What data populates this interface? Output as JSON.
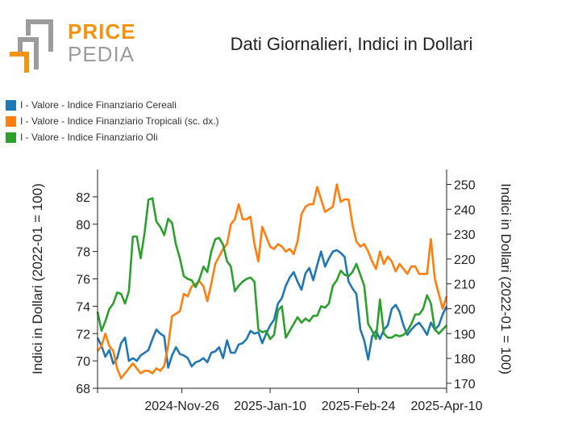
{
  "logo": {
    "word1": "PRICE",
    "word2": "PEDIA",
    "colors": {
      "orange": "#f29312",
      "gray": "#9c9c9c"
    }
  },
  "colors": {
    "cereali": "#1f77b4",
    "tropicali": "#ff7f0e",
    "oli": "#2ca02c"
  },
  "chart_data": {
    "type": "line",
    "title": "Dati Giornalieri, Indici in Dollari",
    "ylabel_left": "Indici in Dollari (2022-01 = 100)",
    "ylabel_right": "Indici in Dollari (2022-01 = 100)",
    "ylim_left": [
      68,
      84
    ],
    "ylim_right": [
      168,
      256
    ],
    "yticks_left": [
      68,
      70,
      72,
      74,
      76,
      78,
      80,
      82
    ],
    "yticks_right": [
      170,
      180,
      190,
      200,
      210,
      220,
      230,
      240,
      250
    ],
    "xlim": [
      "2024-10-14",
      "2025-04-10"
    ],
    "xticks": [
      "2024-Nov-26",
      "2025-Jan-10",
      "2025-Feb-24",
      "2025-Apr-10"
    ],
    "grid": false,
    "legend_position": "top-left",
    "series": [
      {
        "name": "I - Valore - Indice Finanziario Cereali",
        "axis": "left",
        "color": "#1f77b4",
        "values": [
          [
            "2024-10-14",
            71.7
          ],
          [
            "2024-10-16",
            71.1
          ],
          [
            "2024-10-18",
            70.3
          ],
          [
            "2024-10-20",
            70.8
          ],
          [
            "2024-10-22",
            69.8
          ],
          [
            "2024-10-24",
            70.2
          ],
          [
            "2024-10-26",
            71.3
          ],
          [
            "2024-10-28",
            71.7
          ],
          [
            "2024-10-30",
            70.0
          ],
          [
            "2024-11-01",
            70.2
          ],
          [
            "2024-11-03",
            70.0
          ],
          [
            "2024-11-05",
            70.4
          ],
          [
            "2024-11-07",
            70.6
          ],
          [
            "2024-11-09",
            70.8
          ],
          [
            "2024-11-11",
            71.6
          ],
          [
            "2024-11-13",
            72.3
          ],
          [
            "2024-11-15",
            72.0
          ],
          [
            "2024-11-17",
            71.8
          ],
          [
            "2024-11-19",
            69.5
          ],
          [
            "2024-11-21",
            70.4
          ],
          [
            "2024-11-23",
            71.0
          ],
          [
            "2024-11-25",
            70.5
          ],
          [
            "2024-11-27",
            70.4
          ],
          [
            "2024-11-29",
            70.2
          ],
          [
            "2024-12-01",
            69.6
          ],
          [
            "2024-12-03",
            69.9
          ],
          [
            "2024-12-05",
            70.0
          ],
          [
            "2024-12-07",
            70.2
          ],
          [
            "2024-12-09",
            69.9
          ],
          [
            "2024-12-11",
            70.6
          ],
          [
            "2024-12-13",
            70.7
          ],
          [
            "2024-12-15",
            71.0
          ],
          [
            "2024-12-17",
            70.2
          ],
          [
            "2024-12-19",
            71.5
          ],
          [
            "2024-12-21",
            70.6
          ],
          [
            "2024-12-23",
            70.6
          ],
          [
            "2024-12-25",
            71.2
          ],
          [
            "2024-12-27",
            71.3
          ],
          [
            "2024-12-29",
            71.6
          ],
          [
            "2024-12-31",
            72.2
          ],
          [
            "2025-01-02",
            72.0
          ],
          [
            "2025-01-04",
            72.1
          ],
          [
            "2025-01-06",
            71.3
          ],
          [
            "2025-01-08",
            72.0
          ],
          [
            "2025-01-10",
            72.6
          ],
          [
            "2025-01-12",
            73.0
          ],
          [
            "2025-01-14",
            74.2
          ],
          [
            "2025-01-16",
            74.6
          ],
          [
            "2025-01-18",
            75.5
          ],
          [
            "2025-01-20",
            76.1
          ],
          [
            "2025-01-22",
            76.5
          ],
          [
            "2025-01-24",
            75.8
          ],
          [
            "2025-01-26",
            75.2
          ],
          [
            "2025-01-28",
            76.4
          ],
          [
            "2025-01-30",
            76.8
          ],
          [
            "2025-02-01",
            75.9
          ],
          [
            "2025-02-03",
            77.0
          ],
          [
            "2025-02-05",
            78.0
          ],
          [
            "2025-02-07",
            76.9
          ],
          [
            "2025-02-09",
            77.5
          ],
          [
            "2025-02-11",
            78.0
          ],
          [
            "2025-02-13",
            78.1
          ],
          [
            "2025-02-15",
            77.9
          ],
          [
            "2025-02-17",
            77.6
          ],
          [
            "2025-02-19",
            75.8
          ],
          [
            "2025-02-21",
            75.3
          ],
          [
            "2025-02-23",
            74.9
          ],
          [
            "2025-02-25",
            72.3
          ],
          [
            "2025-02-27",
            71.5
          ],
          [
            "2025-03-01",
            70.1
          ],
          [
            "2025-03-03",
            71.8
          ],
          [
            "2025-03-05",
            72.2
          ],
          [
            "2025-03-07",
            71.6
          ],
          [
            "2025-03-09",
            72.3
          ],
          [
            "2025-03-11",
            72.6
          ],
          [
            "2025-03-13",
            73.8
          ],
          [
            "2025-03-15",
            74.1
          ],
          [
            "2025-03-17",
            73.6
          ],
          [
            "2025-03-19",
            72.6
          ],
          [
            "2025-03-21",
            71.9
          ],
          [
            "2025-03-23",
            72.3
          ],
          [
            "2025-03-25",
            72.6
          ],
          [
            "2025-03-27",
            72.8
          ],
          [
            "2025-03-29",
            72.4
          ],
          [
            "2025-03-31",
            71.9
          ],
          [
            "2025-04-02",
            72.8
          ],
          [
            "2025-04-04",
            72.3
          ],
          [
            "2025-04-06",
            72.6
          ],
          [
            "2025-04-08",
            73.4
          ],
          [
            "2025-04-10",
            74.0
          ]
        ]
      },
      {
        "name": "I - Valore - Indice Finanziario Tropicali (sc. dx.)",
        "axis": "right",
        "color": "#ff7f0e",
        "values": [
          [
            "2024-10-14",
            183
          ],
          [
            "2024-10-16",
            185
          ],
          [
            "2024-10-18",
            190
          ],
          [
            "2024-10-20",
            185
          ],
          [
            "2024-10-22",
            183
          ],
          [
            "2024-10-24",
            176
          ],
          [
            "2024-10-26",
            172
          ],
          [
            "2024-10-28",
            174
          ],
          [
            "2024-10-30",
            176
          ],
          [
            "2024-11-01",
            178
          ],
          [
            "2024-11-03",
            176
          ],
          [
            "2024-11-05",
            174
          ],
          [
            "2024-11-07",
            175
          ],
          [
            "2024-11-09",
            175
          ],
          [
            "2024-11-11",
            174
          ],
          [
            "2024-11-13",
            176
          ],
          [
            "2024-11-15",
            175
          ],
          [
            "2024-11-17",
            177
          ],
          [
            "2024-11-19",
            185
          ],
          [
            "2024-11-21",
            197
          ],
          [
            "2024-11-23",
            198
          ],
          [
            "2024-11-25",
            199
          ],
          [
            "2024-11-27",
            206
          ],
          [
            "2024-11-29",
            205
          ],
          [
            "2024-12-01",
            209
          ],
          [
            "2024-12-03",
            210
          ],
          [
            "2024-12-05",
            211
          ],
          [
            "2024-12-07",
            209
          ],
          [
            "2024-12-09",
            203
          ],
          [
            "2024-12-11",
            210
          ],
          [
            "2024-12-13",
            218
          ],
          [
            "2024-12-15",
            221
          ],
          [
            "2024-12-17",
            224
          ],
          [
            "2024-12-19",
            226
          ],
          [
            "2024-12-21",
            234
          ],
          [
            "2024-12-23",
            236
          ],
          [
            "2024-12-25",
            242
          ],
          [
            "2024-12-27",
            236
          ],
          [
            "2024-12-29",
            236
          ],
          [
            "2024-12-31",
            237
          ],
          [
            "2025-01-02",
            226
          ],
          [
            "2025-01-04",
            219
          ],
          [
            "2025-01-06",
            233
          ],
          [
            "2025-01-08",
            229
          ],
          [
            "2025-01-10",
            225
          ],
          [
            "2025-01-12",
            224
          ],
          [
            "2025-01-14",
            226
          ],
          [
            "2025-01-16",
            225
          ],
          [
            "2025-01-18",
            223
          ],
          [
            "2025-01-20",
            224
          ],
          [
            "2025-01-22",
            222
          ],
          [
            "2025-01-24",
            227
          ],
          [
            "2025-01-26",
            238
          ],
          [
            "2025-01-28",
            241
          ],
          [
            "2025-01-30",
            242
          ],
          [
            "2025-02-01",
            242
          ],
          [
            "2025-02-03",
            249
          ],
          [
            "2025-02-05",
            244
          ],
          [
            "2025-02-07",
            239
          ],
          [
            "2025-02-09",
            240
          ],
          [
            "2025-02-11",
            241
          ],
          [
            "2025-02-13",
            250
          ],
          [
            "2025-02-15",
            243
          ],
          [
            "2025-02-17",
            244
          ],
          [
            "2025-02-19",
            244
          ],
          [
            "2025-02-21",
            234
          ],
          [
            "2025-02-23",
            227
          ],
          [
            "2025-02-25",
            225
          ],
          [
            "2025-02-27",
            226
          ],
          [
            "2025-03-01",
            223
          ],
          [
            "2025-03-03",
            219
          ],
          [
            "2025-03-05",
            216
          ],
          [
            "2025-03-07",
            223
          ],
          [
            "2025-03-09",
            218
          ],
          [
            "2025-03-11",
            221
          ],
          [
            "2025-03-13",
            219
          ],
          [
            "2025-03-15",
            215
          ],
          [
            "2025-03-17",
            218
          ],
          [
            "2025-03-19",
            216
          ],
          [
            "2025-03-21",
            214
          ],
          [
            "2025-03-23",
            217
          ],
          [
            "2025-03-25",
            217
          ],
          [
            "2025-03-27",
            214
          ],
          [
            "2025-03-29",
            214
          ],
          [
            "2025-03-31",
            214
          ],
          [
            "2025-04-02",
            228
          ],
          [
            "2025-04-04",
            212
          ],
          [
            "2025-04-06",
            206
          ],
          [
            "2025-04-08",
            200
          ],
          [
            "2025-04-10",
            205
          ]
        ]
      },
      {
        "name": "I - Valore - Indice Finanziario Oli",
        "axis": "left",
        "color": "#2ca02c",
        "values": [
          [
            "2024-10-14",
            73.6
          ],
          [
            "2024-10-16",
            72.2
          ],
          [
            "2024-10-18",
            72.9
          ],
          [
            "2024-10-20",
            73.8
          ],
          [
            "2024-10-22",
            74.2
          ],
          [
            "2024-10-24",
            75.0
          ],
          [
            "2024-10-26",
            74.9
          ],
          [
            "2024-10-28",
            74.2
          ],
          [
            "2024-10-30",
            75.1
          ],
          [
            "2024-11-01",
            79.1
          ],
          [
            "2024-11-03",
            79.1
          ],
          [
            "2024-11-05",
            77.5
          ],
          [
            "2024-11-07",
            79.4
          ],
          [
            "2024-11-09",
            81.8
          ],
          [
            "2024-11-11",
            81.9
          ],
          [
            "2024-11-13",
            80.2
          ],
          [
            "2024-11-15",
            79.8
          ],
          [
            "2024-11-17",
            79.2
          ],
          [
            "2024-11-19",
            80.4
          ],
          [
            "2024-11-21",
            80.1
          ],
          [
            "2024-11-23",
            78.5
          ],
          [
            "2024-11-25",
            77.5
          ],
          [
            "2024-11-27",
            76.2
          ],
          [
            "2024-11-29",
            76.0
          ],
          [
            "2024-12-01",
            75.9
          ],
          [
            "2024-12-03",
            75.4
          ],
          [
            "2024-12-05",
            76.0
          ],
          [
            "2024-12-07",
            76.9
          ],
          [
            "2024-12-09",
            76.5
          ],
          [
            "2024-12-11",
            78.0
          ],
          [
            "2024-12-13",
            78.9
          ],
          [
            "2024-12-15",
            79.0
          ],
          [
            "2024-12-17",
            78.5
          ],
          [
            "2024-12-19",
            77.3
          ],
          [
            "2024-12-21",
            76.9
          ],
          [
            "2024-12-23",
            75.1
          ],
          [
            "2024-12-25",
            75.5
          ],
          [
            "2024-12-27",
            75.8
          ],
          [
            "2024-12-29",
            76.0
          ],
          [
            "2024-12-31",
            76.1
          ],
          [
            "2025-01-02",
            75.8
          ],
          [
            "2025-01-04",
            72.3
          ],
          [
            "2025-01-06",
            72.1
          ],
          [
            "2025-01-08",
            72.2
          ],
          [
            "2025-01-10",
            71.6
          ],
          [
            "2025-01-12",
            71.9
          ],
          [
            "2025-01-14",
            73.7
          ],
          [
            "2025-01-16",
            74.0
          ],
          [
            "2025-01-18",
            71.7
          ],
          [
            "2025-01-20",
            72.2
          ],
          [
            "2025-01-22",
            72.7
          ],
          [
            "2025-01-24",
            73.2
          ],
          [
            "2025-01-26",
            72.8
          ],
          [
            "2025-01-28",
            73.1
          ],
          [
            "2025-01-30",
            72.9
          ],
          [
            "2025-02-01",
            73.3
          ],
          [
            "2025-02-03",
            73.3
          ],
          [
            "2025-02-05",
            74.0
          ],
          [
            "2025-02-07",
            73.9
          ],
          [
            "2025-02-09",
            74.2
          ],
          [
            "2025-02-11",
            75.5
          ],
          [
            "2025-02-13",
            75.9
          ],
          [
            "2025-02-15",
            76.6
          ],
          [
            "2025-02-17",
            76.3
          ],
          [
            "2025-02-19",
            76.2
          ],
          [
            "2025-02-21",
            76.5
          ],
          [
            "2025-02-23",
            77.1
          ],
          [
            "2025-02-25",
            76.3
          ],
          [
            "2025-02-27",
            75.5
          ],
          [
            "2025-03-01",
            72.7
          ],
          [
            "2025-03-03",
            72.2
          ],
          [
            "2025-03-05",
            71.6
          ],
          [
            "2025-03-07",
            74.5
          ],
          [
            "2025-03-09",
            72.0
          ],
          [
            "2025-03-11",
            71.7
          ],
          [
            "2025-03-13",
            71.7
          ],
          [
            "2025-03-15",
            71.9
          ],
          [
            "2025-03-17",
            71.8
          ],
          [
            "2025-03-19",
            71.9
          ],
          [
            "2025-03-21",
            72.2
          ],
          [
            "2025-03-23",
            72.7
          ],
          [
            "2025-03-25",
            73.4
          ],
          [
            "2025-03-27",
            73.4
          ],
          [
            "2025-03-29",
            73.8
          ],
          [
            "2025-03-31",
            74.8
          ],
          [
            "2025-04-02",
            74.2
          ],
          [
            "2025-04-04",
            72.3
          ],
          [
            "2025-04-06",
            72.0
          ],
          [
            "2025-04-08",
            72.3
          ],
          [
            "2025-04-10",
            72.6
          ]
        ]
      }
    ]
  }
}
